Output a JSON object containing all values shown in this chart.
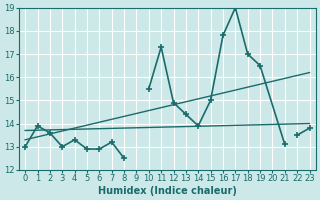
{
  "xlabel": "Humidex (Indice chaleur)",
  "line_jagged_x": [
    0,
    1,
    2,
    3,
    4,
    5,
    6,
    7,
    8,
    10,
    11,
    12,
    13,
    14,
    15,
    16,
    17,
    18,
    19,
    21,
    22,
    23
  ],
  "line_jagged_y": [
    13.0,
    13.9,
    13.6,
    13.0,
    13.3,
    12.9,
    12.9,
    13.2,
    12.5,
    15.5,
    17.3,
    14.9,
    14.4,
    13.9,
    15.0,
    17.8,
    19.0,
    17.0,
    16.5,
    13.1,
    13.5,
    13.8
  ],
  "line_trend1_x": [
    0,
    23
  ],
  "line_trend1_y": [
    13.3,
    16.2
  ],
  "line_trend2_x": [
    0,
    23
  ],
  "line_trend2_y": [
    13.7,
    14.0
  ],
  "line_color": "#1a6b6b",
  "bg_color": "#cde8e8",
  "grid_color": "#b8d8d8",
  "ylim": [
    12,
    19
  ],
  "xlim": [
    -0.5,
    23.5
  ],
  "yticks": [
    12,
    13,
    14,
    15,
    16,
    17,
    18,
    19
  ],
  "xticks": [
    0,
    1,
    2,
    3,
    4,
    5,
    6,
    7,
    8,
    9,
    10,
    11,
    12,
    13,
    14,
    15,
    16,
    17,
    18,
    19,
    20,
    21,
    22,
    23
  ]
}
